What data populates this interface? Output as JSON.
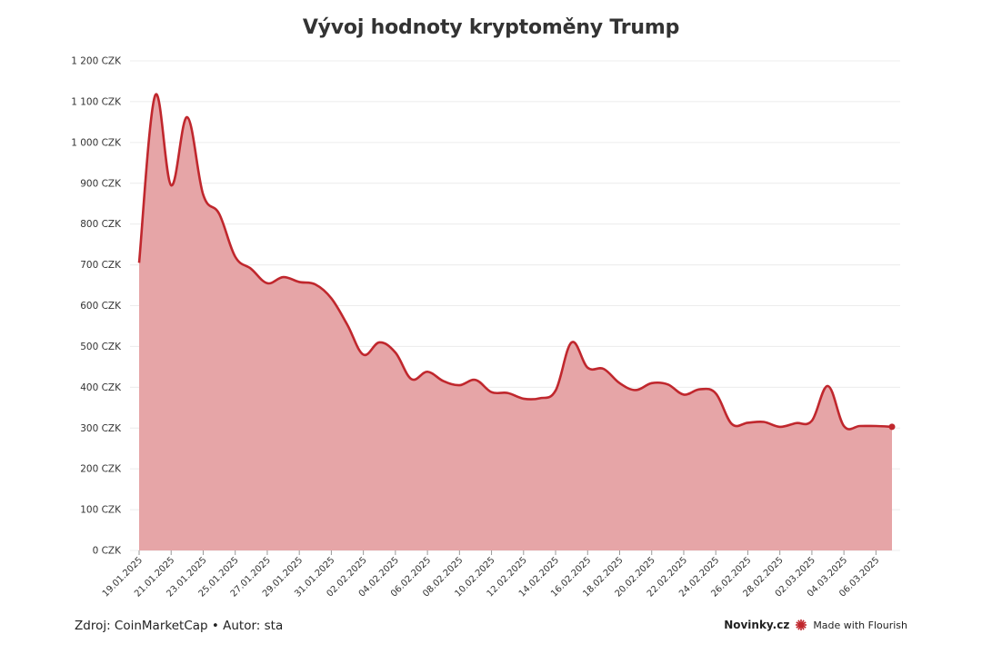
{
  "title": "Vývoj hodnoty kryptoměny Trump",
  "footer": {
    "source": "Zdroj: CoinMarketCap • Autor: sta",
    "brand": "Novinky.cz",
    "flourish": "Made with Flourish"
  },
  "colors": {
    "line": "#c0272d",
    "area": "#e6a5a7",
    "grid": "#ececec",
    "flourish_star": "#c0272d"
  },
  "chart_data": {
    "type": "area",
    "title": "Vývoj hodnoty kryptoměny Trump",
    "xlabel": "",
    "ylabel": "",
    "ylim": [
      0,
      1200
    ],
    "y_ticks": [
      0,
      100,
      200,
      300,
      400,
      500,
      600,
      700,
      800,
      900,
      1000,
      1100,
      1200
    ],
    "y_tick_labels": [
      "0 CZK",
      "100 CZK",
      "200 CZK",
      "300 CZK",
      "400 CZK",
      "500 CZK",
      "600 CZK",
      "700 CZK",
      "800 CZK",
      "900 CZK",
      "1 000 CZK",
      "1 100 CZK",
      "1 200 CZK"
    ],
    "x_tick_labels": [
      "19.01.2025",
      "21.01.2025",
      "23.01.2025",
      "25.01.2025",
      "27.01.2025",
      "29.01.2025",
      "31.01.2025",
      "02.02.2025",
      "04.02.2025",
      "06.02.2025",
      "08.02.2025",
      "10.02.2025",
      "12.02.2025",
      "14.02.2025",
      "16.02.2025",
      "18.02.2025",
      "20.02.2025",
      "22.02.2025",
      "24.02.2025",
      "26.02.2025",
      "28.02.2025",
      "02.03.2025",
      "04.03.2025",
      "06.03.2025"
    ],
    "grid": true,
    "legend": "none",
    "x": [
      "19.01.2025",
      "20.01.2025",
      "21.01.2025",
      "22.01.2025",
      "23.01.2025",
      "24.01.2025",
      "25.01.2025",
      "26.01.2025",
      "27.01.2025",
      "28.01.2025",
      "29.01.2025",
      "30.01.2025",
      "31.01.2025",
      "01.02.2025",
      "02.02.2025",
      "03.02.2025",
      "04.02.2025",
      "05.02.2025",
      "06.02.2025",
      "07.02.2025",
      "08.02.2025",
      "09.02.2025",
      "10.02.2025",
      "11.02.2025",
      "12.02.2025",
      "13.02.2025",
      "14.02.2025",
      "15.02.2025",
      "16.02.2025",
      "17.02.2025",
      "18.02.2025",
      "19.02.2025",
      "20.02.2025",
      "21.02.2025",
      "22.02.2025",
      "23.02.2025",
      "24.02.2025",
      "25.02.2025",
      "26.02.2025",
      "27.02.2025",
      "28.02.2025",
      "01.03.2025",
      "02.03.2025",
      "03.03.2025",
      "04.03.2025",
      "05.03.2025",
      "06.03.2025",
      "07.03.2025"
    ],
    "values": [
      705,
      1115,
      895,
      1062,
      872,
      825,
      720,
      690,
      655,
      670,
      658,
      652,
      618,
      553,
      480,
      510,
      485,
      420,
      438,
      415,
      405,
      418,
      388,
      386,
      372,
      373,
      392,
      510,
      448,
      445,
      410,
      393,
      410,
      407,
      382,
      395,
      385,
      310,
      313,
      315,
      303,
      312,
      318,
      403,
      305,
      305,
      305,
      303
    ]
  }
}
